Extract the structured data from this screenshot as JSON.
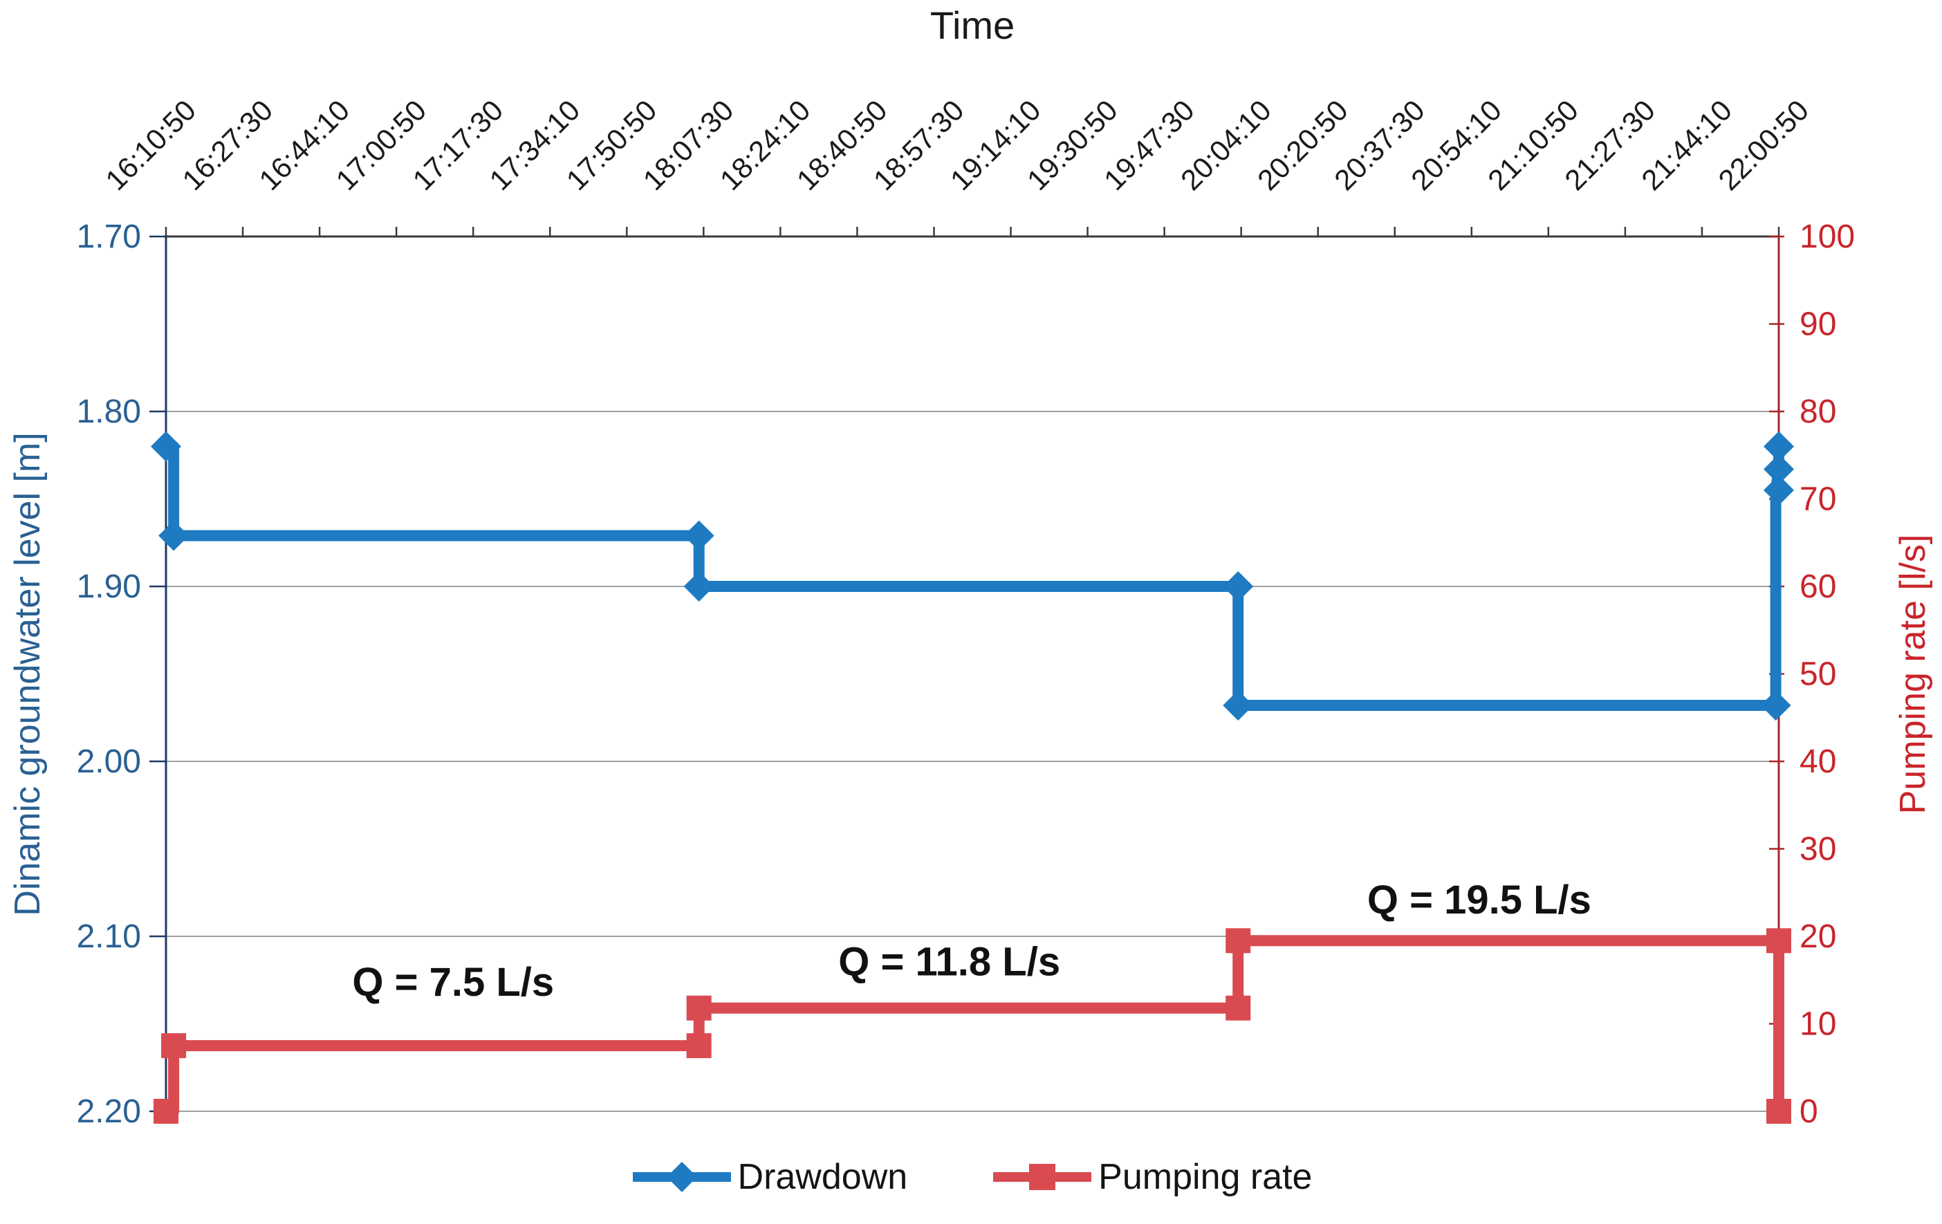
{
  "chart_data": {
    "type": "line",
    "title": "Time",
    "x_axis": {
      "label": "Time",
      "position": "top",
      "tick_label_rotation_deg": 45,
      "tick_labels": [
        "16:10:50",
        "16:27:30",
        "16:44:10",
        "17:00:50",
        "17:17:30",
        "17:34:10",
        "17:50:50",
        "18:07:30",
        "18:24:10",
        "18:40:50",
        "18:57:30",
        "19:14:10",
        "19:30:50",
        "19:47:30",
        "20:04:10",
        "20:20:50",
        "20:37:30",
        "20:54:10",
        "21:10:50",
        "21:27:30",
        "21:44:10",
        "22:00:50"
      ]
    },
    "y_axis_left": {
      "label": "Dinamic groundwater level [m]",
      "min": 1.7,
      "max": 2.2,
      "direction": "increases downward (1.70 at top)",
      "ticks": [
        "1.70",
        "1.80",
        "1.90",
        "2.00",
        "2.10",
        "2.20"
      ],
      "text_color": "#2A6093",
      "axis_line_color": "#1F3864"
    },
    "y_axis_right": {
      "label": "Pumping rate [l/s]",
      "min": 0,
      "max": 100,
      "ticks": [
        "0",
        "10",
        "20",
        "30",
        "40",
        "50",
        "60",
        "70",
        "80",
        "90",
        "100"
      ],
      "text_color": "#C9252B",
      "axis_line_color": "#A8262B"
    },
    "grid": {
      "horizontal": true,
      "vertical": false,
      "color": "#A0A0A0"
    },
    "series": [
      {
        "name": "Pumping rate",
        "axis": "right",
        "color": "#D94B50",
        "marker": "square",
        "line_width": 16,
        "points": [
          [
            0,
            0
          ],
          [
            0.1,
            0
          ],
          [
            0.1,
            7.5
          ],
          [
            6.94,
            7.5
          ],
          [
            6.94,
            11.8
          ],
          [
            13.96,
            11.8
          ],
          [
            13.96,
            19.5
          ],
          [
            21,
            19.5
          ],
          [
            21,
            0
          ]
        ],
        "marker_points": [
          [
            0,
            0
          ],
          [
            0.1,
            7.5
          ],
          [
            6.94,
            7.5
          ],
          [
            6.94,
            11.8
          ],
          [
            13.96,
            11.8
          ],
          [
            13.96,
            19.5
          ],
          [
            21,
            19.5
          ],
          [
            21,
            0
          ]
        ]
      },
      {
        "name": "Drawdown",
        "axis": "left",
        "color": "#1E7BC2",
        "marker": "diamond",
        "line_width": 16,
        "points": [
          [
            0,
            1.82
          ],
          [
            0.1,
            1.82
          ],
          [
            0.1,
            1.871
          ],
          [
            6.94,
            1.871
          ],
          [
            6.94,
            1.9
          ],
          [
            13.96,
            1.9
          ],
          [
            13.96,
            1.968
          ],
          [
            20.96,
            1.968
          ],
          [
            20.96,
            1.845
          ],
          [
            21,
            1.833
          ],
          [
            21,
            1.82
          ]
        ],
        "marker_points": [
          [
            0,
            1.82
          ],
          [
            0.1,
            1.871
          ],
          [
            6.94,
            1.871
          ],
          [
            6.94,
            1.9
          ],
          [
            13.96,
            1.9
          ],
          [
            13.96,
            1.968
          ],
          [
            20.96,
            1.968
          ],
          [
            21,
            1.845
          ],
          [
            21,
            1.833
          ],
          [
            21,
            1.82
          ]
        ]
      }
    ],
    "annotations": [
      {
        "text": "Q = 7.5 L/s",
        "x": 3.74,
        "y_rate": 14.8
      },
      {
        "text": "Q = 11.8 L/s",
        "x": 10.2,
        "y_rate": 17.1
      },
      {
        "text": "Q = 19.5 L/s",
        "x": 17.1,
        "y_rate": 24.2
      }
    ],
    "legend": {
      "position": "bottom",
      "items": [
        {
          "label": "Drawdown",
          "color": "#1E7BC2",
          "marker": "diamond"
        },
        {
          "label": "Pumping rate",
          "color": "#D94B50",
          "marker": "square"
        }
      ]
    }
  }
}
